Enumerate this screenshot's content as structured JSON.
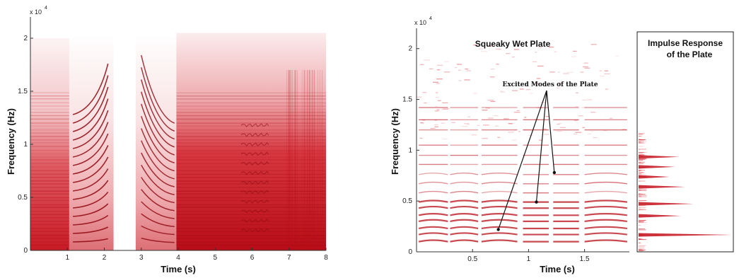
{
  "chart_data": [
    {
      "type": "heatmap",
      "title": "",
      "xlabel": "Time (s)",
      "ylabel": "Frequency (Hz)",
      "y_multiplier": "x 10",
      "y_exponent": "4",
      "xlim": [
        0,
        8
      ],
      "ylim": [
        0,
        2.2
      ],
      "x_ticks": [
        1,
        2,
        3,
        4,
        5,
        6,
        7,
        8
      ],
      "y_ticks": [
        0,
        0.5,
        1,
        1.5,
        2
      ],
      "x_tick_labels": [
        "1",
        "2",
        "3",
        "4",
        "5",
        "6",
        "7",
        "8"
      ],
      "y_tick_labels": [
        "0",
        "0.5",
        "1",
        "1.5",
        "2"
      ],
      "colormap": "white-to-red",
      "color": "#d0141e",
      "grid": false
    },
    {
      "type": "heatmap",
      "title": "Squeaky Wet Plate",
      "xlabel": "Time (s)",
      "ylabel": "Frequency (Hz)",
      "y_multiplier": "x 10",
      "y_exponent": "4",
      "xlim": [
        0,
        1.9
      ],
      "ylim": [
        0,
        2.2
      ],
      "x_ticks": [
        0.5,
        1,
        1.5
      ],
      "y_ticks": [
        0,
        0.5,
        1,
        1.5,
        2
      ],
      "x_tick_labels": [
        "0.5",
        "1",
        "1.5"
      ],
      "y_tick_labels": [
        "0",
        "0.5",
        "1",
        "1.5",
        "2"
      ],
      "colormap": "white-to-red",
      "color": "#d0141e",
      "grid": false,
      "annotation": {
        "text": "Excited Modes of the Plate",
        "points": [
          [
            0.73,
            2200
          ],
          [
            1.07,
            4900
          ],
          [
            1.23,
            7800
          ]
        ]
      }
    },
    {
      "type": "line",
      "title_lines": [
        "Impulse Response",
        "of the Plate"
      ],
      "orientation": "horizontal-spectrum",
      "ylim": [
        0,
        2.2
      ],
      "peaks_hz": [
        1700,
        3600,
        4800,
        6500,
        7500,
        8500,
        9500
      ],
      "color": "#d0141e"
    }
  ]
}
